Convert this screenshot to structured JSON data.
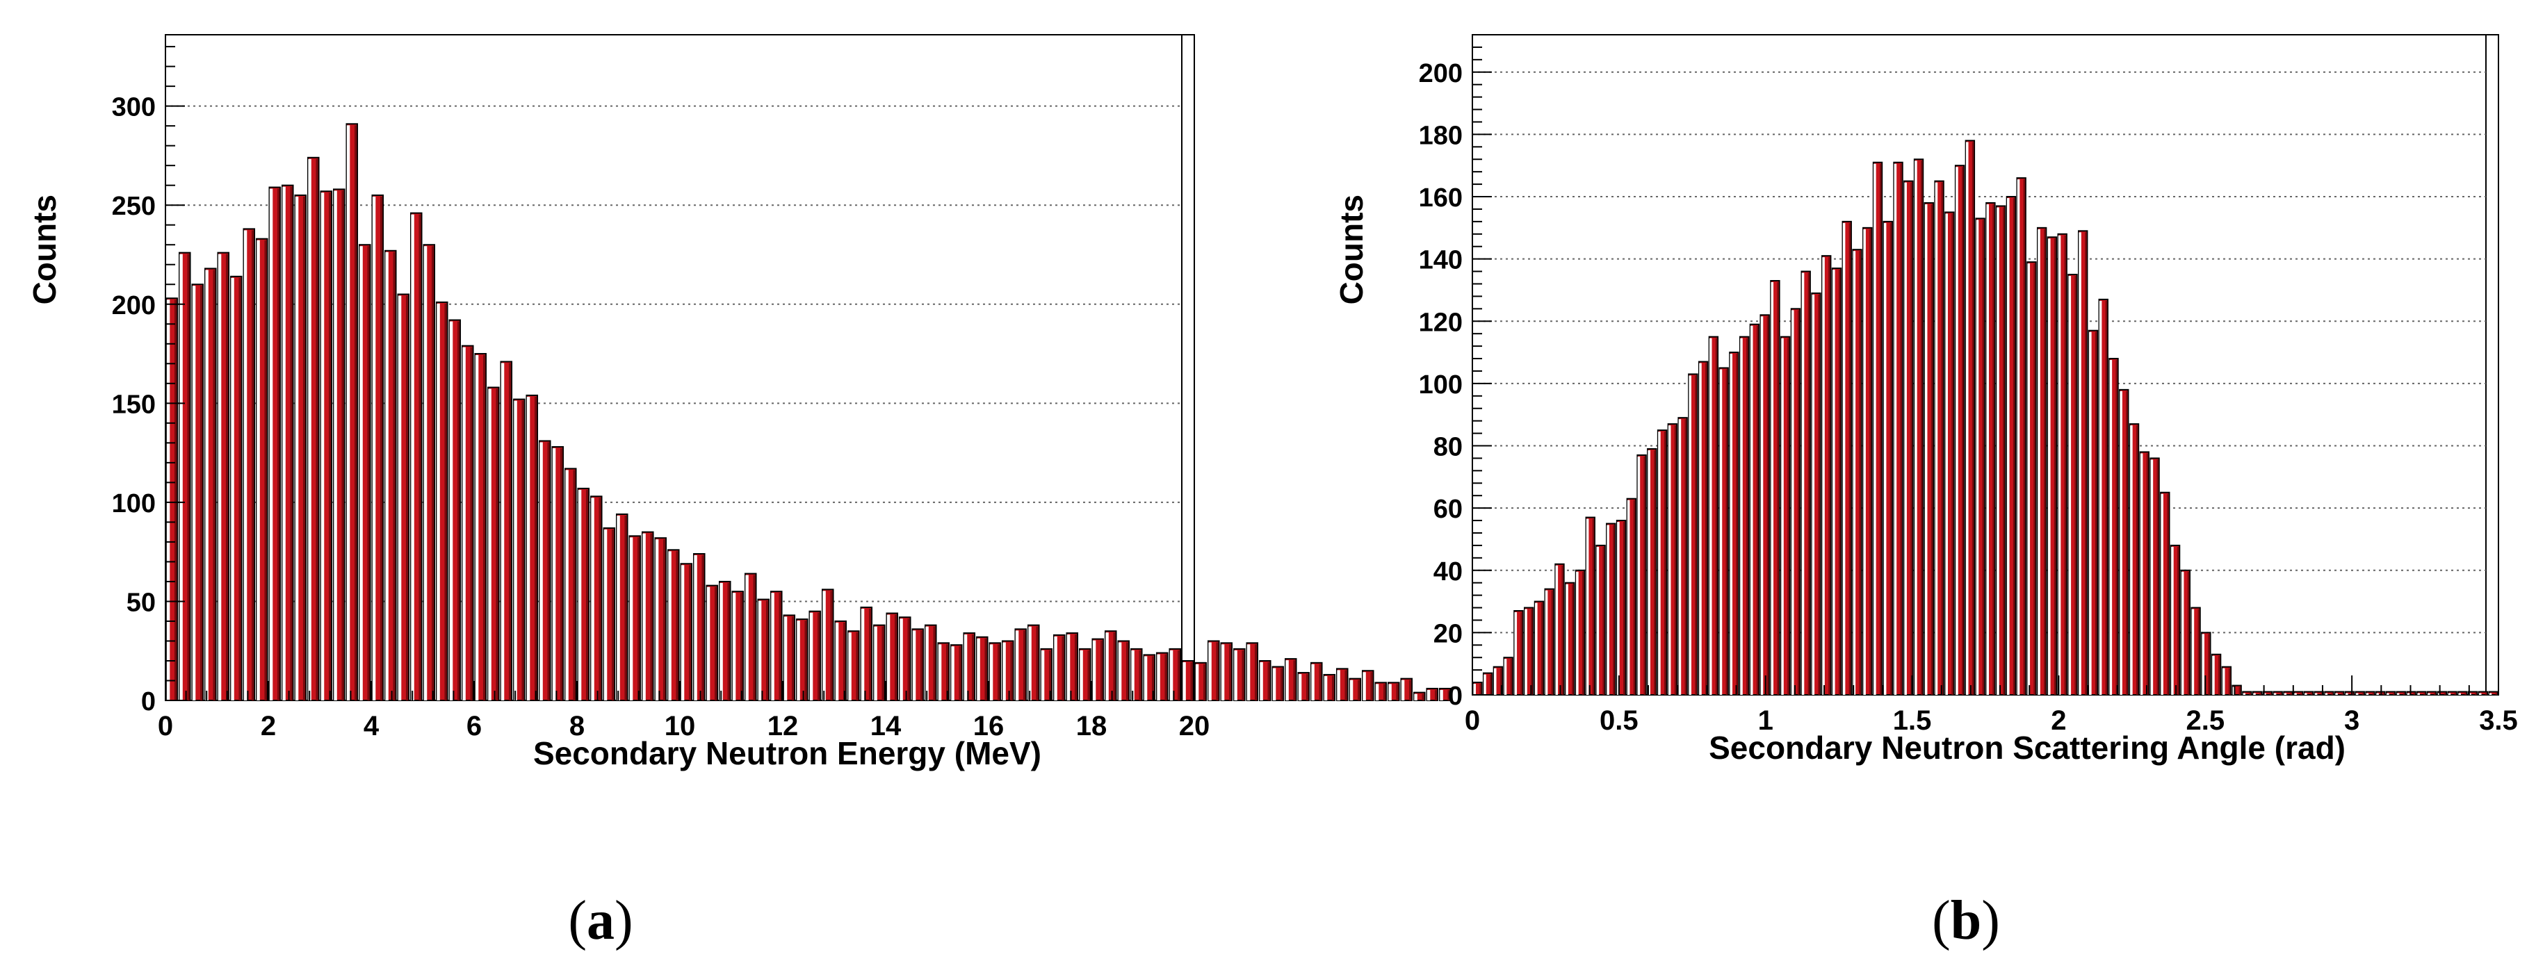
{
  "figure": {
    "captions": [
      "(a)",
      "(b)"
    ],
    "caption_letters": [
      "a",
      "b"
    ]
  },
  "colors": {
    "bar": "#c8141c",
    "bar_side": "#7a0a0e",
    "bar_highlight": "#ffffff",
    "grid": "#666666"
  },
  "chart_data": [
    {
      "type": "bar",
      "panel": "a",
      "title": "",
      "xlabel": "Secondary Neutron Energy (MeV)",
      "ylabel": "Counts",
      "xlim": [
        0,
        20
      ],
      "ylim": [
        0,
        336
      ],
      "xticks": [
        0,
        2,
        4,
        6,
        8,
        10,
        12,
        14,
        16,
        18,
        20
      ],
      "yticks": [
        0,
        50,
        100,
        150,
        200,
        250,
        300
      ],
      "grid": "horizontal dotted",
      "bin_width": 0.25,
      "bin_start": 0,
      "values": [
        203,
        226,
        210,
        218,
        226,
        214,
        238,
        233,
        259,
        260,
        255,
        274,
        257,
        258,
        291,
        230,
        255,
        227,
        205,
        246,
        230,
        201,
        192,
        179,
        175,
        158,
        171,
        152,
        154,
        131,
        128,
        117,
        107,
        103,
        87,
        94,
        83,
        85,
        82,
        76,
        69,
        74,
        58,
        60,
        55,
        64,
        51,
        55,
        43,
        41,
        45,
        56,
        40,
        35,
        47,
        38,
        44,
        42,
        36,
        38,
        29,
        28,
        34,
        32,
        29,
        30,
        36,
        38,
        26,
        33,
        34,
        26,
        31,
        35,
        30,
        26,
        23,
        24,
        26,
        20,
        19,
        30,
        29,
        26,
        29,
        20,
        17,
        21,
        14,
        19,
        13,
        16,
        11,
        15,
        9,
        9,
        11,
        4,
        6,
        6
      ]
    },
    {
      "type": "bar",
      "panel": "b",
      "title": "",
      "xlabel": "Secondary Neutron Scattering Angle (rad)",
      "ylabel": "Counts",
      "xlim": [
        0,
        3.5
      ],
      "ylim": [
        0,
        212
      ],
      "xticks": [
        0,
        0.5,
        1,
        1.5,
        2,
        2.5,
        3,
        3.5
      ],
      "yticks": [
        0,
        20,
        40,
        60,
        80,
        100,
        120,
        140,
        160,
        180,
        200
      ],
      "grid": "horizontal dotted",
      "bin_width": 0.035,
      "bin_start": 0,
      "values": [
        4,
        7,
        9,
        12,
        27,
        28,
        30,
        34,
        42,
        36,
        40,
        57,
        48,
        55,
        56,
        63,
        77,
        79,
        85,
        87,
        89,
        103,
        107,
        115,
        105,
        110,
        115,
        119,
        122,
        133,
        115,
        124,
        136,
        129,
        141,
        137,
        152,
        143,
        150,
        171,
        152,
        171,
        165,
        172,
        158,
        165,
        155,
        170,
        178,
        153,
        158,
        157,
        160,
        166,
        139,
        150,
        147,
        148,
        135,
        149,
        117,
        127,
        108,
        98,
        87,
        78,
        76,
        65,
        48,
        40,
        28,
        20,
        13,
        9,
        3,
        1,
        1,
        1,
        1,
        1,
        1,
        1,
        1,
        1,
        1,
        1,
        1,
        1,
        1,
        1,
        1,
        1,
        1,
        1,
        1,
        1,
        1,
        1,
        1,
        1
      ]
    }
  ]
}
